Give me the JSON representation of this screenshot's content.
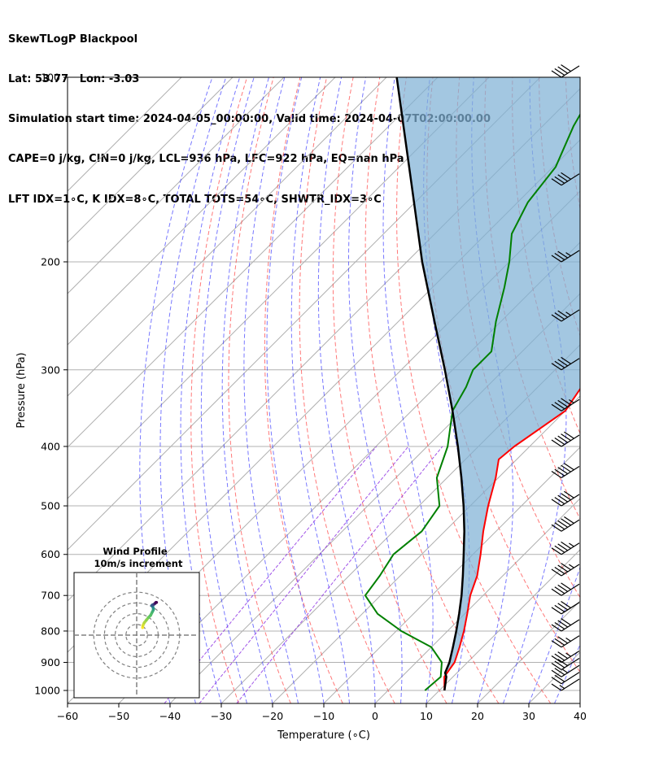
{
  "title_lines": [
    "SkewTLogP Blackpool",
    "Lat: 53.77   Lon: -3.03",
    "Simulation start time: 2024-04-05_00:00:00, Valid time: 2024-04-07T02:00:00.00",
    "CAPE=0 j/kg, CIN=0 j/kg, LCL=936 hPa, LFC=922 hPa, EQ=nan hPa",
    "LFT IDX=1∘C, K IDX=8∘C, TOTAL TOTS=54∘C, SHWTR_IDX=3∘C"
  ],
  "chart_data": {
    "type": "line",
    "subtype": "skew-t log-p",
    "xlabel": "Temperature (∘C)",
    "ylabel": "Pressure (hPa)",
    "xlim": [
      -60,
      40
    ],
    "ylim": [
      1050,
      100
    ],
    "y_scale": "log",
    "x_ticks": [
      -60,
      -50,
      -40,
      -30,
      -20,
      -10,
      0,
      10,
      20,
      30,
      40
    ],
    "y_ticks": [
      100,
      200,
      300,
      400,
      500,
      600,
      700,
      800,
      900,
      1000
    ],
    "grid": true,
    "series": [
      {
        "name": "",
        "color": "#ff0000",
        "points": [
          [
            1000,
            11
          ],
          [
            950,
            8.3
          ],
          [
            900,
            7.5
          ],
          [
            850,
            5.5
          ],
          [
            800,
            3.2
          ],
          [
            750,
            0.5
          ],
          [
            700,
            -2.5
          ],
          [
            650,
            -5
          ],
          [
            600,
            -8.5
          ],
          [
            550,
            -12.5
          ],
          [
            500,
            -16.5
          ],
          [
            450,
            -20.5
          ],
          [
            420,
            -23.5
          ],
          [
            400,
            -23
          ],
          [
            350,
            -20
          ],
          [
            320,
            -21.5
          ],
          [
            300,
            -24.5
          ],
          [
            280,
            -28
          ],
          [
            250,
            -32
          ],
          [
            220,
            -37.5
          ],
          [
            200,
            -43
          ],
          [
            180,
            -48.5
          ],
          [
            160,
            -55.5
          ],
          [
            140,
            -60.5
          ],
          [
            120,
            -65
          ],
          [
            100,
            -68
          ]
        ]
      },
      {
        "name": "",
        "color": "#008000",
        "points": [
          [
            1000,
            7.2
          ],
          [
            950,
            7.6
          ],
          [
            900,
            5
          ],
          [
            850,
            0
          ],
          [
            800,
            -9
          ],
          [
            750,
            -17
          ],
          [
            700,
            -23
          ],
          [
            650,
            -24
          ],
          [
            600,
            -25.5
          ],
          [
            550,
            -24.5
          ],
          [
            500,
            -26
          ],
          [
            450,
            -32
          ],
          [
            400,
            -36
          ],
          [
            350,
            -42
          ],
          [
            320,
            -44
          ],
          [
            300,
            -46
          ],
          [
            280,
            -46
          ],
          [
            250,
            -51
          ],
          [
            220,
            -56
          ],
          [
            200,
            -60
          ],
          [
            180,
            -65
          ],
          [
            160,
            -68
          ],
          [
            140,
            -69.5
          ],
          [
            120,
            -74
          ],
          [
            100,
            -78
          ]
        ]
      },
      {
        "name": "",
        "color": "#000000",
        "points": [
          [
            1000,
            11
          ],
          [
            950,
            8.7
          ],
          [
            936,
            7.7
          ],
          [
            900,
            6.5
          ],
          [
            850,
            4.2
          ],
          [
            800,
            1.7
          ],
          [
            750,
            -1.1
          ],
          [
            700,
            -4.2
          ],
          [
            650,
            -7.8
          ],
          [
            600,
            -11.8
          ],
          [
            550,
            -16.2
          ],
          [
            500,
            -21.3
          ],
          [
            450,
            -27.2
          ],
          [
            400,
            -34
          ],
          [
            350,
            -42
          ],
          [
            300,
            -51.5
          ],
          [
            250,
            -63
          ],
          [
            200,
            -77
          ],
          [
            150,
            -94
          ],
          [
            100,
            -118
          ]
        ]
      }
    ],
    "wind_barbs": {
      "speed_kt": [
        15,
        20,
        25,
        30,
        35,
        35,
        40,
        40,
        40,
        45,
        45,
        50,
        50,
        50,
        50,
        45,
        40,
        35,
        35,
        40,
        40
      ],
      "pressures": [
        1000,
        975,
        950,
        925,
        900,
        850,
        800,
        750,
        700,
        650,
        600,
        550,
        500,
        450,
        400,
        350,
        300,
        250,
        200,
        150,
        100
      ]
    },
    "hodograph": {
      "title": "Wind Profile",
      "subtitle": "10m/s increment",
      "u": [
        5.5,
        5.8,
        7,
        9,
        11,
        13,
        14.5,
        15.5,
        15.5,
        15,
        14.5,
        14,
        14.5,
        15.5,
        16.5,
        17,
        17.5,
        18,
        18.5
      ],
      "v": [
        7,
        9,
        11.5,
        14,
        16.5,
        18.5,
        21.5,
        23.5,
        25,
        26.5,
        27,
        27.5,
        28,
        28.5,
        29,
        29.5,
        30,
        30.5,
        30.5
      ]
    }
  }
}
